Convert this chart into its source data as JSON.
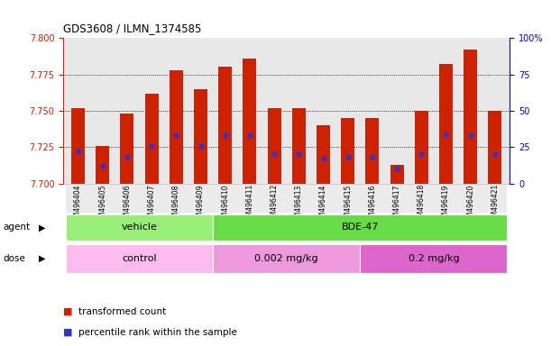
{
  "title": "GDS3608 / ILMN_1374585",
  "samples": [
    "GSM496404",
    "GSM496405",
    "GSM496406",
    "GSM496407",
    "GSM496408",
    "GSM496409",
    "GSM496410",
    "GSM496411",
    "GSM496412",
    "GSM496413",
    "GSM496414",
    "GSM496415",
    "GSM496416",
    "GSM496417",
    "GSM496418",
    "GSM496419",
    "GSM496420",
    "GSM496421"
  ],
  "bar_values": [
    7.752,
    7.726,
    7.748,
    7.762,
    7.778,
    7.765,
    7.78,
    7.786,
    7.752,
    7.752,
    7.74,
    7.745,
    7.745,
    7.713,
    7.75,
    7.782,
    7.792,
    7.75
  ],
  "blue_dot_values": [
    7.722,
    7.712,
    7.718,
    7.726,
    7.733,
    7.726,
    7.733,
    7.733,
    7.72,
    7.72,
    7.717,
    7.718,
    7.718,
    7.71,
    7.72,
    7.734,
    7.733,
    7.72
  ],
  "y_min": 7.7,
  "y_max": 7.8,
  "y_ticks": [
    7.7,
    7.725,
    7.75,
    7.775,
    7.8
  ],
  "right_y_ticks": [
    0,
    25,
    50,
    75,
    100
  ],
  "bar_color": "#cc2200",
  "dot_color": "#3333cc",
  "grid_yticks": [
    7.725,
    7.75,
    7.775
  ],
  "plot_bg": "#e8e8e8",
  "left_tick_color": "#cc2200",
  "right_tick_color": "#0000cc",
  "agent_groups": [
    {
      "label": "vehicle",
      "start": 0,
      "end": 5,
      "color": "#99ee77"
    },
    {
      "label": "BDE-47",
      "start": 6,
      "end": 17,
      "color": "#66dd44"
    }
  ],
  "dose_groups": [
    {
      "label": "control",
      "start": 0,
      "end": 5,
      "color": "#ffbbee"
    },
    {
      "label": "0.002 mg/kg",
      "start": 6,
      "end": 11,
      "color": "#ee99dd"
    },
    {
      "label": "0.2 mg/kg",
      "start": 12,
      "end": 17,
      "color": "#dd66cc"
    }
  ],
  "legend_items": [
    {
      "label": "transformed count",
      "color": "#cc2200"
    },
    {
      "label": "percentile rank within the sample",
      "color": "#3333cc"
    }
  ],
  "bar_width": 0.55
}
